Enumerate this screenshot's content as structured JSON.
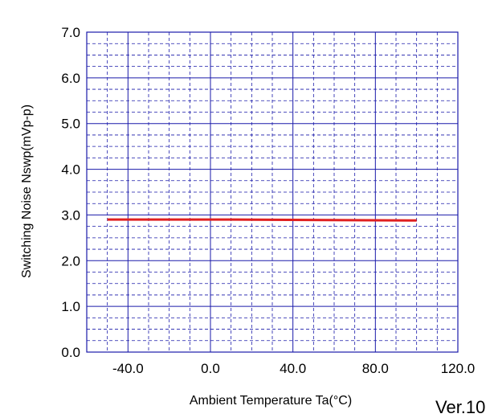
{
  "chart_data": {
    "type": "line",
    "title": "",
    "xlabel": "Ambient Temperature  Ta(°C)",
    "ylabel": "Switching Noise  Nswp(mVp-p)",
    "xlim": [
      -60,
      120
    ],
    "ylim": [
      0,
      7
    ],
    "x_ticks": [
      -40,
      0,
      40,
      80,
      120
    ],
    "x_tick_labels": [
      "-40.0",
      "0.0",
      "40.0",
      "80.0",
      "120.0"
    ],
    "y_ticks": [
      0,
      1,
      2,
      3,
      4,
      5,
      6,
      7
    ],
    "y_tick_labels": [
      "0.0",
      "1.0",
      "2.0",
      "3.0",
      "4.0",
      "5.0",
      "6.0",
      "7.0"
    ],
    "grid": true,
    "series": [
      {
        "x": [
          -50,
          10,
          100
        ],
        "y": [
          2.9,
          2.9,
          2.88
        ]
      }
    ]
  },
  "colors": {
    "grid": "#1a1aaa",
    "series": "#e02020",
    "text": "#000000"
  },
  "footer": {
    "version": "Ver.10"
  }
}
